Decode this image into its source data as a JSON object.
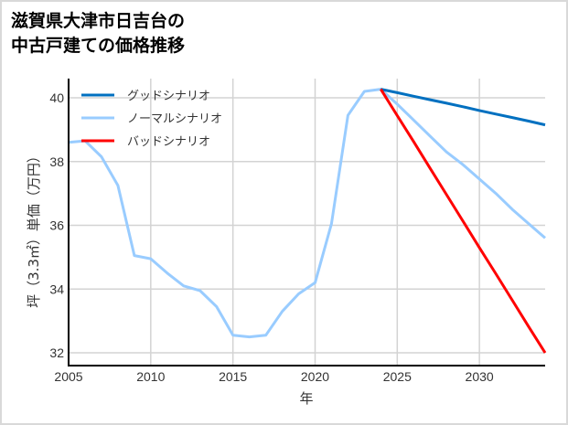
{
  "title": {
    "line1": "滋賀県大津市日吉台の",
    "line2": "中古戸建ての価格推移"
  },
  "colors": {
    "good": "#0070c0",
    "normal": "#99ccff",
    "bad": "#ff0000",
    "grid": "#d3d3d3",
    "axis": "#000000",
    "border": "#d9d9d9"
  },
  "chart_data": {
    "type": "line",
    "title": "滋賀県大津市日吉台の中古戸建ての価格推移",
    "xlabel": "年",
    "ylabel": "坪（3.3㎡）単価（万円）",
    "xlim": [
      2005,
      2034
    ],
    "ylim": [
      31.6,
      40.6
    ],
    "xticks": [
      2005,
      2010,
      2015,
      2020,
      2025,
      2030
    ],
    "yticks": [
      32,
      34,
      36,
      38,
      40
    ],
    "grid": true,
    "legend_position": "upper left",
    "series": [
      {
        "name": "グッドシナリオ",
        "color": "#0070c0",
        "x": [
          2024,
          2025,
          2026,
          2027,
          2028,
          2029,
          2030,
          2031,
          2032,
          2033,
          2034
        ],
        "y": [
          40.27,
          40.16,
          40.05,
          39.94,
          39.83,
          39.72,
          39.6,
          39.49,
          39.38,
          39.27,
          39.15
        ]
      },
      {
        "name": "ノーマルシナリオ",
        "color": "#99ccff",
        "x": [
          2005,
          2006,
          2007,
          2008,
          2009,
          2010,
          2011,
          2012,
          2013,
          2014,
          2015,
          2016,
          2017,
          2018,
          2019,
          2020,
          2021,
          2022,
          2023,
          2024,
          2025,
          2026,
          2027,
          2028,
          2029,
          2030,
          2031,
          2032,
          2033,
          2034
        ],
        "y": [
          38.6,
          38.65,
          38.15,
          37.25,
          35.05,
          34.95,
          34.5,
          34.1,
          33.95,
          33.45,
          32.55,
          32.5,
          32.55,
          33.3,
          33.85,
          34.2,
          36.05,
          39.45,
          40.2,
          40.27,
          39.8,
          39.3,
          38.8,
          38.3,
          37.9,
          37.45,
          37.0,
          36.5,
          36.05,
          35.6
        ]
      },
      {
        "name": "バッドシナリオ",
        "color": "#ff0000",
        "x": [
          2024,
          2025,
          2026,
          2027,
          2028,
          2029,
          2030,
          2031,
          2032,
          2033,
          2034
        ],
        "y": [
          40.27,
          39.44,
          38.62,
          37.79,
          36.96,
          36.13,
          35.3,
          34.48,
          33.65,
          32.82,
          32.0
        ]
      }
    ]
  }
}
